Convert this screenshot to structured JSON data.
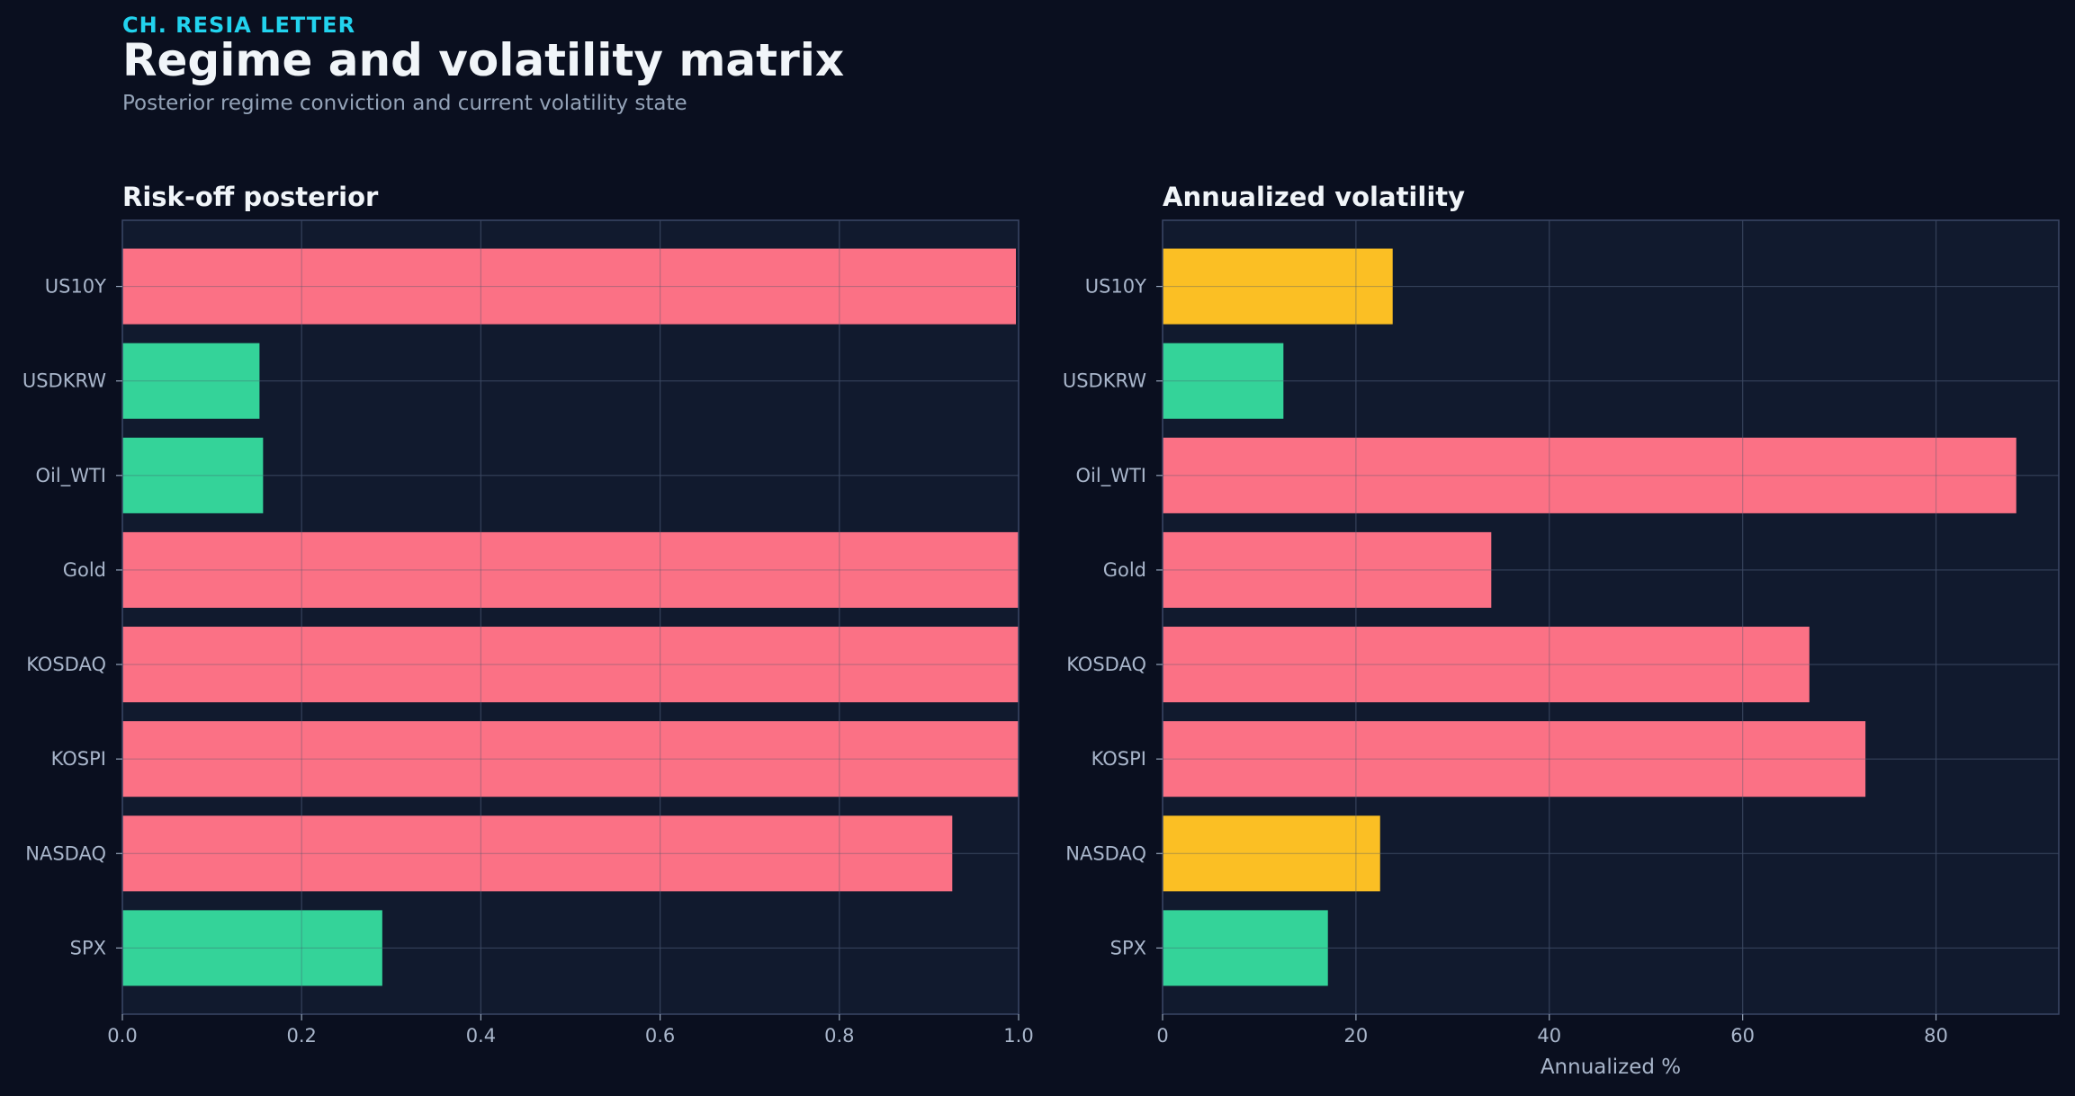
{
  "header": {
    "kicker": "CH. RESIA LETTER",
    "title": "Regime and volatility matrix",
    "subtitle": "Posterior regime conviction and current volatility state"
  },
  "colors": {
    "background": "#0a0f1f",
    "panel": "#111a2e",
    "high": "#fb7185",
    "mid": "#fbbf24",
    "low": "#34d399",
    "accent": "#22d3ee"
  },
  "chart_data": [
    {
      "type": "bar",
      "orientation": "horizontal",
      "title": "Risk-off posterior",
      "xlabel": "",
      "categories": [
        "US10Y",
        "USDKRW",
        "Oil_WTI",
        "Gold",
        "KOSDAQ",
        "KOSPI",
        "NASDAQ",
        "SPX"
      ],
      "values": [
        0.997,
        0.153,
        0.157,
        1.0,
        1.0,
        1.0,
        0.926,
        0.29
      ],
      "bar_colors": [
        "high",
        "low",
        "low",
        "high",
        "high",
        "high",
        "high",
        "low"
      ],
      "xlim": [
        0,
        1.0
      ],
      "xticks": [
        "0.0",
        "0.2",
        "0.4",
        "0.6",
        "0.8",
        "1.0"
      ],
      "xtick_values": [
        0,
        0.2,
        0.4,
        0.6,
        0.8,
        1.0
      ],
      "grid": true
    },
    {
      "type": "bar",
      "orientation": "horizontal",
      "title": "Annualized volatility",
      "xlabel": "Annualized %",
      "categories": [
        "US10Y",
        "USDKRW",
        "Oil_WTI",
        "Gold",
        "KOSDAQ",
        "KOSPI",
        "NASDAQ",
        "SPX"
      ],
      "values": [
        23.8,
        12.5,
        88.3,
        34.0,
        66.9,
        72.7,
        22.5,
        17.1
      ],
      "bar_colors": [
        "mid",
        "low",
        "high",
        "high",
        "high",
        "high",
        "mid",
        "low"
      ],
      "xlim": [
        0,
        92.7
      ],
      "xticks": [
        "0",
        "20",
        "40",
        "60",
        "80"
      ],
      "xtick_values": [
        0,
        20,
        40,
        60,
        80
      ],
      "grid": true
    }
  ]
}
